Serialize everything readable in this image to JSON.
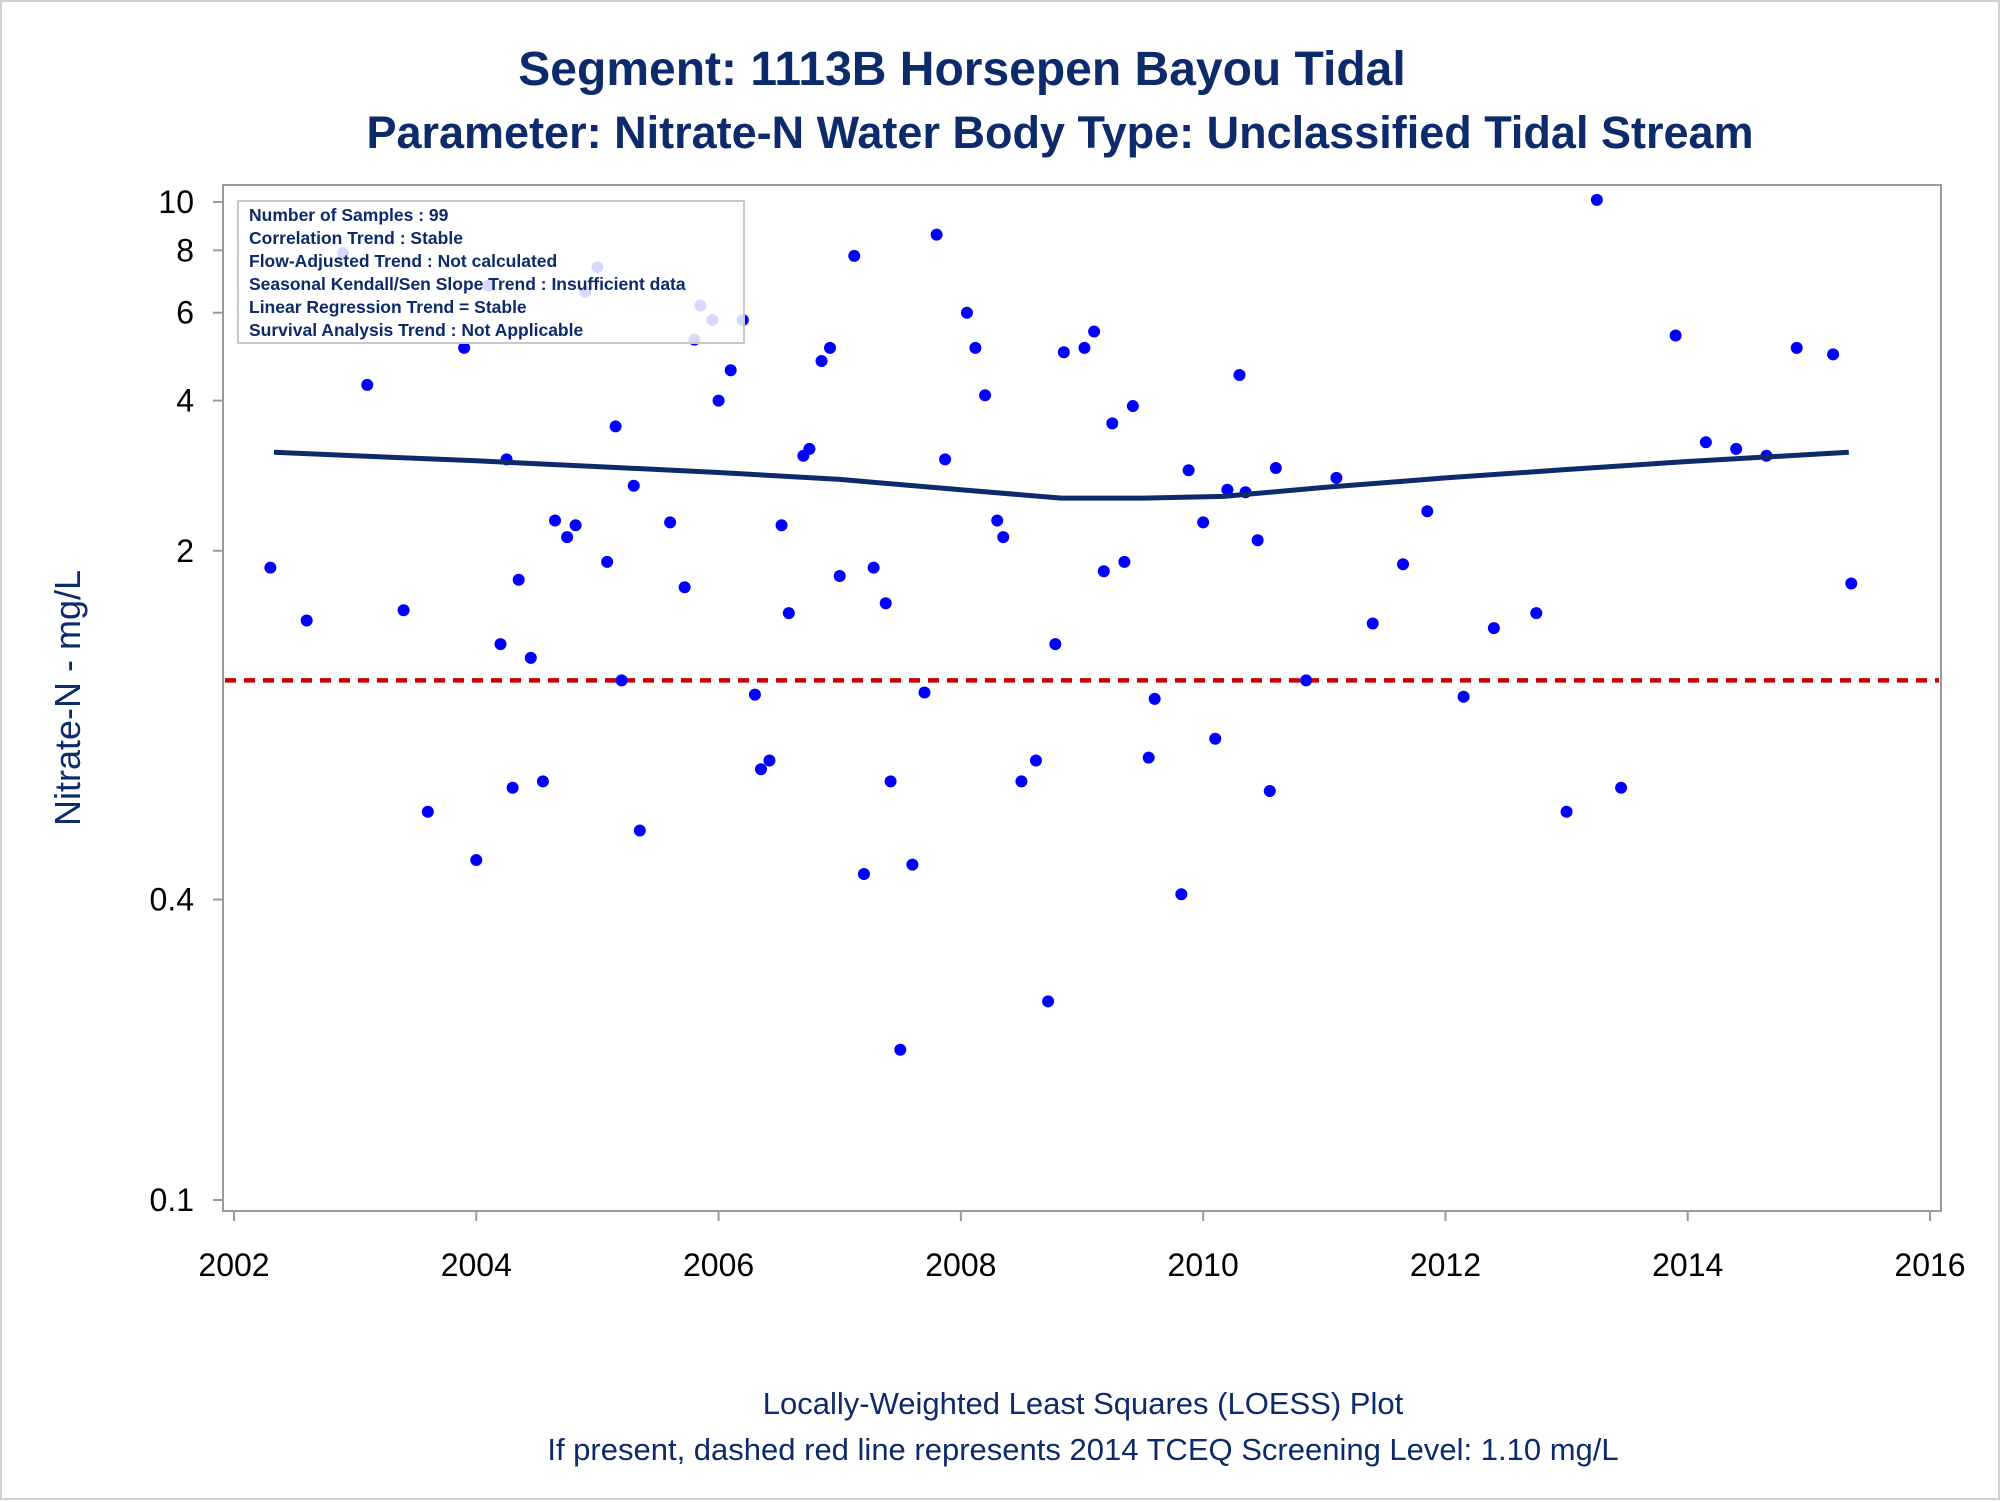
{
  "chart_data": {
    "type": "scatter",
    "title": "Segment: 1113B  Horsepen Bayou Tidal",
    "subtitle": "Parameter: Nitrate-N   Water Body Type: Unclassified Tidal Stream",
    "xlabel": "",
    "ylabel": "Nitrate-N - mg/L",
    "xlim": [
      2002,
      2016
    ],
    "ylim": [
      0.1,
      10.5
    ],
    "y_scale": "log",
    "x_ticks": [
      "2002",
      "2004",
      "2006",
      "2008",
      "2010",
      "2012",
      "2014",
      "2016"
    ],
    "y_ticks": [
      {
        "value": 0.1,
        "label": "0.1"
      },
      {
        "value": 0.4,
        "label": "0.4"
      },
      {
        "value": 2,
        "label": "2"
      },
      {
        "value": 4,
        "label": "4"
      },
      {
        "value": 6,
        "label": "6"
      },
      {
        "value": 8,
        "label": "8"
      },
      {
        "value": 10,
        "label": "10"
      }
    ],
    "grid": false,
    "marker_color": "#0000ff",
    "trend_line_color": "#0d2a6b",
    "screening_line_color": "#cc0000",
    "screening_level": 1.1,
    "stats_box": [
      "Number of Samples : 99",
      "Correlation Trend : Stable",
      "Flow-Adjusted Trend : Not calculated",
      "Seasonal Kendall/Sen Slope Trend : Insufficient data",
      "Linear Regression Trend = Stable",
      "Survival Analysis Trend : Not Applicable"
    ],
    "stats_box_placement": "top-left",
    "footnotes": [
      "Locally-Weighted Least Squares (LOESS) Plot",
      "If present, dashed red line represents 2014 TCEQ Screening Level: 1.10 mg/L"
    ],
    "loess": [
      [
        2002.33,
        3.15
      ],
      [
        2003.0,
        3.1
      ],
      [
        2004.0,
        3.03
      ],
      [
        2005.0,
        2.95
      ],
      [
        2006.0,
        2.87
      ],
      [
        2007.0,
        2.78
      ],
      [
        2008.0,
        2.65
      ],
      [
        2008.83,
        2.55
      ],
      [
        2009.5,
        2.55
      ],
      [
        2010.17,
        2.57
      ],
      [
        2011.0,
        2.68
      ],
      [
        2012.0,
        2.8
      ],
      [
        2013.0,
        2.91
      ],
      [
        2014.0,
        3.02
      ],
      [
        2015.33,
        3.15
      ]
    ],
    "points": [
      [
        2002.3,
        1.85
      ],
      [
        2002.6,
        1.45
      ],
      [
        2002.9,
        7.9
      ],
      [
        2003.1,
        4.3
      ],
      [
        2003.4,
        1.52
      ],
      [
        2003.6,
        0.6
      ],
      [
        2003.9,
        5.1
      ],
      [
        2004.0,
        0.48
      ],
      [
        2004.1,
        6.8
      ],
      [
        2004.2,
        1.3
      ],
      [
        2004.25,
        3.05
      ],
      [
        2004.3,
        0.67
      ],
      [
        2004.35,
        1.75
      ],
      [
        2004.45,
        1.22
      ],
      [
        2004.55,
        0.69
      ],
      [
        2004.65,
        2.3
      ],
      [
        2004.75,
        2.13
      ],
      [
        2004.82,
        2.25
      ],
      [
        2004.9,
        6.6
      ],
      [
        2005.0,
        7.4
      ],
      [
        2005.08,
        1.9
      ],
      [
        2005.15,
        3.55
      ],
      [
        2005.2,
        1.1
      ],
      [
        2005.3,
        2.7
      ],
      [
        2005.35,
        0.55
      ],
      [
        2005.6,
        2.28
      ],
      [
        2005.72,
        1.69
      ],
      [
        2005.8,
        5.3
      ],
      [
        2005.85,
        6.2
      ],
      [
        2005.95,
        5.8
      ],
      [
        2006.0,
        4.0
      ],
      [
        2006.1,
        4.6
      ],
      [
        2006.2,
        5.8
      ],
      [
        2006.3,
        1.03
      ],
      [
        2006.35,
        0.73
      ],
      [
        2006.42,
        0.76
      ],
      [
        2006.52,
        2.25
      ],
      [
        2006.58,
        1.5
      ],
      [
        2006.7,
        3.1
      ],
      [
        2006.75,
        3.2
      ],
      [
        2006.85,
        4.8
      ],
      [
        2006.92,
        5.1
      ],
      [
        2007.0,
        1.78
      ],
      [
        2007.12,
        7.8
      ],
      [
        2007.2,
        0.45
      ],
      [
        2007.28,
        1.85
      ],
      [
        2007.38,
        1.57
      ],
      [
        2007.42,
        0.69
      ],
      [
        2007.5,
        0.2
      ],
      [
        2007.6,
        0.47
      ],
      [
        2007.7,
        1.04
      ],
      [
        2007.8,
        8.6
      ],
      [
        2007.87,
        3.05
      ],
      [
        2008.05,
        6.0
      ],
      [
        2008.12,
        5.1
      ],
      [
        2008.2,
        4.1
      ],
      [
        2008.3,
        2.3
      ],
      [
        2008.35,
        2.13
      ],
      [
        2008.5,
        0.69
      ],
      [
        2008.62,
        0.76
      ],
      [
        2008.72,
        0.25
      ],
      [
        2008.78,
        1.3
      ],
      [
        2008.85,
        5.0
      ],
      [
        2009.02,
        5.1
      ],
      [
        2009.1,
        5.5
      ],
      [
        2009.18,
        1.82
      ],
      [
        2009.25,
        3.6
      ],
      [
        2009.35,
        1.9
      ],
      [
        2009.42,
        3.9
      ],
      [
        2009.55,
        0.77
      ],
      [
        2009.6,
        1.01
      ],
      [
        2009.82,
        0.41
      ],
      [
        2009.88,
        2.9
      ],
      [
        2010.0,
        2.28
      ],
      [
        2010.1,
        0.84
      ],
      [
        2010.2,
        2.65
      ],
      [
        2010.3,
        4.5
      ],
      [
        2010.35,
        2.62
      ],
      [
        2010.45,
        2.1
      ],
      [
        2010.55,
        0.66
      ],
      [
        2010.6,
        2.93
      ],
      [
        2010.85,
        1.1
      ],
      [
        2011.1,
        2.8
      ],
      [
        2011.4,
        1.43
      ],
      [
        2011.65,
        1.88
      ],
      [
        2011.85,
        2.4
      ],
      [
        2012.15,
        1.02
      ],
      [
        2012.4,
        1.4
      ],
      [
        2012.75,
        1.5
      ],
      [
        2013.0,
        0.6
      ],
      [
        2013.25,
        10.1
      ],
      [
        2013.45,
        0.67
      ],
      [
        2013.9,
        5.4
      ],
      [
        2014.15,
        3.3
      ],
      [
        2014.4,
        3.2
      ],
      [
        2014.65,
        3.1
      ],
      [
        2014.9,
        5.1
      ],
      [
        2015.2,
        4.95
      ],
      [
        2015.35,
        1.72
      ]
    ]
  }
}
